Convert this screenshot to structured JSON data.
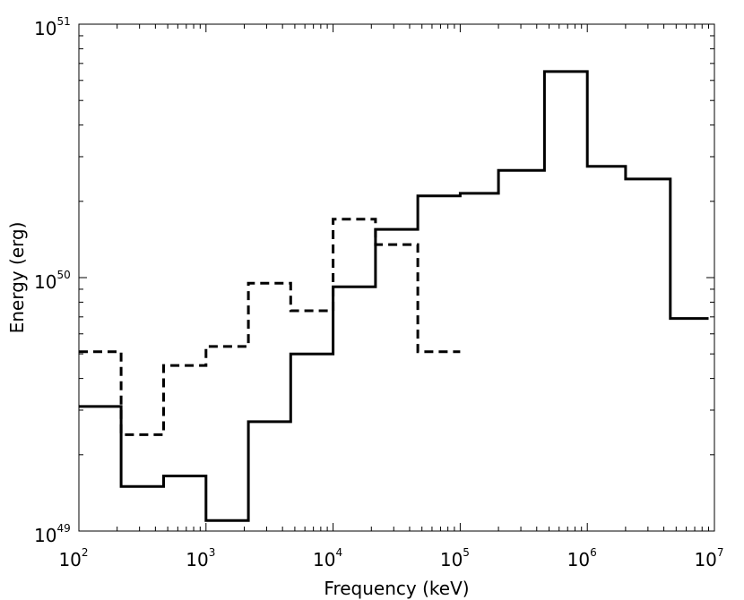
{
  "chart_data": {
    "type": "line",
    "title": "",
    "xlabel": "Frequency (keV)",
    "ylabel": "Energy (erg)",
    "xscale": "log",
    "yscale": "log",
    "xlim": [
      100,
      10000000
    ],
    "ylim": [
      1e+49,
      1e+51
    ],
    "grid": false,
    "x_ticks": [
      {
        "base": "10",
        "exp": "2"
      },
      {
        "base": "10",
        "exp": "3"
      },
      {
        "base": "10",
        "exp": "4"
      },
      {
        "base": "10",
        "exp": "5"
      },
      {
        "base": "10",
        "exp": "6"
      },
      {
        "base": "10",
        "exp": "7"
      }
    ],
    "y_ticks": [
      {
        "base": "10",
        "exp": "49"
      },
      {
        "base": "10",
        "exp": "50"
      },
      {
        "base": "10",
        "exp": "51"
      }
    ],
    "series": [
      {
        "style": "solid",
        "color": "#000000",
        "step": "post",
        "x": [
          100,
          215,
          464,
          1000,
          2154,
          4642,
          10000,
          21544,
          46416,
          100000,
          200000,
          460000,
          1000000,
          2000000,
          4500000,
          9000000
        ],
        "y": [
          3.1e+49,
          1.5e+49,
          1.65e+49,
          1.1e+49,
          2.7e+49,
          5e+49,
          9.2e+49,
          1.55e+50,
          2.1e+50,
          2.15e+50,
          2.65e+50,
          6.5e+50,
          2.75e+50,
          2.45e+50,
          6.9e+49,
          6.9e+49
        ]
      },
      {
        "style": "dashed",
        "color": "#000000",
        "step": "post",
        "x": [
          100,
          215,
          464,
          1000,
          2154,
          4642,
          10000,
          21544,
          46416,
          100000
        ],
        "y": [
          5.1e+49,
          2.4e+49,
          4.5e+49,
          5.35e+49,
          9.5e+49,
          7.4e+49,
          1.7e+50,
          1.35e+50,
          5.1e+49,
          5.1e+49
        ]
      }
    ]
  }
}
